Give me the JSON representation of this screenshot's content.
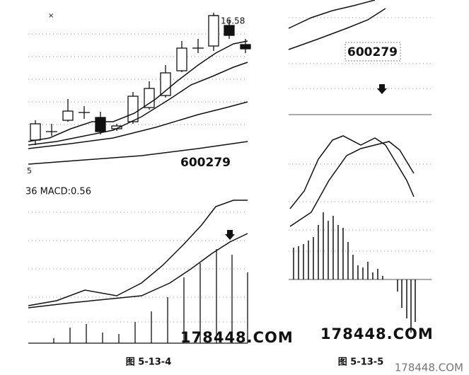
{
  "left_panel": {
    "marker": "×",
    "price_label": "16.58",
    "stock_code": "600279",
    "axis_fragment": "5",
    "macd_label": "36 MACD:0.56",
    "watermark": "178448.COM",
    "caption": "图 5-13-4"
  },
  "right_panel": {
    "stock_code": "600279",
    "watermark": "178448.COM",
    "caption": "图 5-13-5"
  },
  "site_watermark": "178448.COM"
}
